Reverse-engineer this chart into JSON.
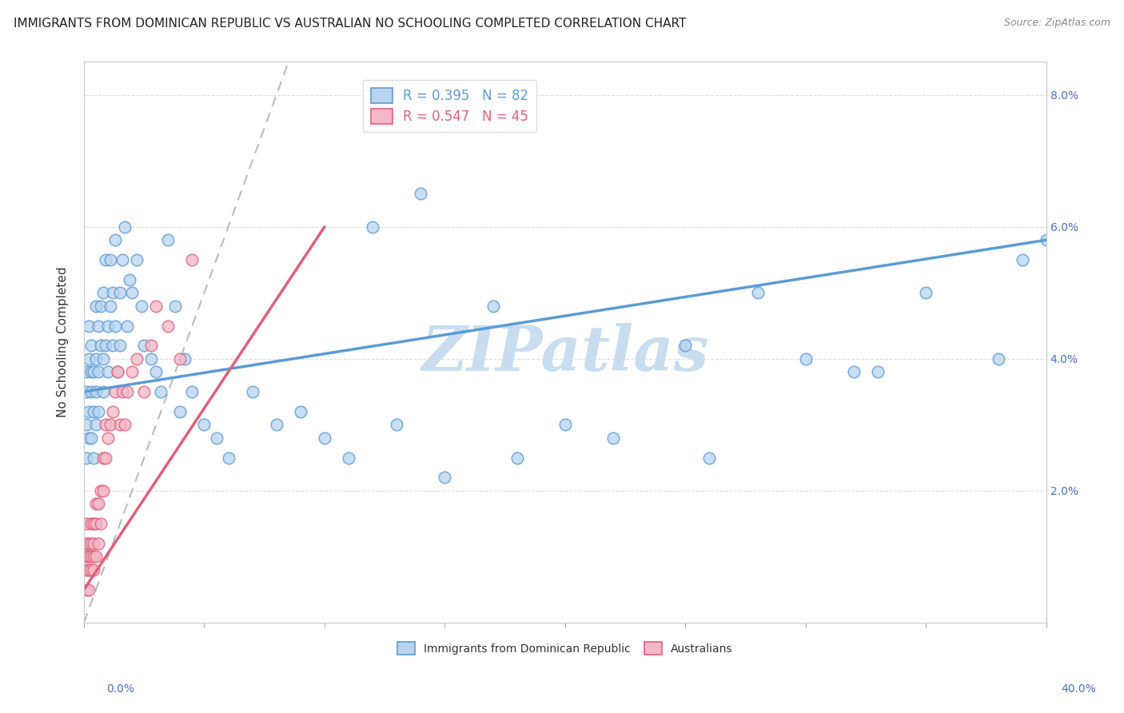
{
  "title": "IMMIGRANTS FROM DOMINICAN REPUBLIC VS AUSTRALIAN NO SCHOOLING COMPLETED CORRELATION CHART",
  "source": "Source: ZipAtlas.com",
  "ylabel_label": "No Schooling Completed",
  "yticks": [
    0.02,
    0.04,
    0.06,
    0.08
  ],
  "xlim": [
    0.0,
    0.4
  ],
  "ylim": [
    0.0,
    0.085
  ],
  "blue_scatter_x": [
    0.001,
    0.001,
    0.001,
    0.001,
    0.002,
    0.002,
    0.002,
    0.002,
    0.003,
    0.003,
    0.003,
    0.003,
    0.004,
    0.004,
    0.004,
    0.005,
    0.005,
    0.005,
    0.005,
    0.006,
    0.006,
    0.006,
    0.007,
    0.007,
    0.008,
    0.008,
    0.008,
    0.009,
    0.009,
    0.01,
    0.01,
    0.011,
    0.011,
    0.012,
    0.012,
    0.013,
    0.013,
    0.014,
    0.015,
    0.015,
    0.016,
    0.017,
    0.018,
    0.019,
    0.02,
    0.022,
    0.024,
    0.025,
    0.028,
    0.03,
    0.032,
    0.035,
    0.038,
    0.04,
    0.042,
    0.045,
    0.05,
    0.055,
    0.06,
    0.07,
    0.08,
    0.09,
    0.1,
    0.11,
    0.13,
    0.15,
    0.18,
    0.2,
    0.22,
    0.26,
    0.3,
    0.32,
    0.35,
    0.38,
    0.39,
    0.4,
    0.17,
    0.25,
    0.28,
    0.33,
    0.12,
    0.14
  ],
  "blue_scatter_y": [
    0.03,
    0.035,
    0.025,
    0.038,
    0.028,
    0.032,
    0.04,
    0.045,
    0.035,
    0.028,
    0.038,
    0.042,
    0.025,
    0.032,
    0.038,
    0.03,
    0.035,
    0.04,
    0.048,
    0.032,
    0.038,
    0.045,
    0.042,
    0.048,
    0.04,
    0.035,
    0.05,
    0.042,
    0.055,
    0.038,
    0.045,
    0.048,
    0.055,
    0.042,
    0.05,
    0.045,
    0.058,
    0.038,
    0.042,
    0.05,
    0.055,
    0.06,
    0.045,
    0.052,
    0.05,
    0.055,
    0.048,
    0.042,
    0.04,
    0.038,
    0.035,
    0.058,
    0.048,
    0.032,
    0.04,
    0.035,
    0.03,
    0.028,
    0.025,
    0.035,
    0.03,
    0.032,
    0.028,
    0.025,
    0.03,
    0.022,
    0.025,
    0.03,
    0.028,
    0.025,
    0.04,
    0.038,
    0.05,
    0.04,
    0.055,
    0.058,
    0.048,
    0.042,
    0.05,
    0.038,
    0.06,
    0.065
  ],
  "pink_scatter_x": [
    0.001,
    0.001,
    0.001,
    0.001,
    0.001,
    0.002,
    0.002,
    0.002,
    0.002,
    0.003,
    0.003,
    0.003,
    0.003,
    0.004,
    0.004,
    0.004,
    0.004,
    0.005,
    0.005,
    0.005,
    0.006,
    0.006,
    0.007,
    0.007,
    0.008,
    0.008,
    0.009,
    0.009,
    0.01,
    0.011,
    0.012,
    0.013,
    0.014,
    0.015,
    0.016,
    0.017,
    0.018,
    0.02,
    0.022,
    0.025,
    0.028,
    0.03,
    0.035,
    0.04,
    0.045
  ],
  "pink_scatter_y": [
    0.005,
    0.01,
    0.015,
    0.008,
    0.012,
    0.008,
    0.012,
    0.005,
    0.01,
    0.01,
    0.015,
    0.008,
    0.012,
    0.01,
    0.015,
    0.008,
    0.012,
    0.01,
    0.015,
    0.018,
    0.012,
    0.018,
    0.015,
    0.02,
    0.02,
    0.025,
    0.025,
    0.03,
    0.028,
    0.03,
    0.032,
    0.035,
    0.038,
    0.03,
    0.035,
    0.03,
    0.035,
    0.038,
    0.04,
    0.035,
    0.042,
    0.048,
    0.045,
    0.04,
    0.055
  ],
  "blue_line_x": [
    0.0,
    0.4
  ],
  "blue_line_y": [
    0.035,
    0.058
  ],
  "pink_line_x": [
    0.0,
    0.1
  ],
  "pink_line_y": [
    0.005,
    0.06
  ],
  "diag_line_x": [
    0.0,
    0.085
  ],
  "diag_line_y": [
    0.0,
    0.085
  ],
  "blue_dot_color": "#5b9bd5",
  "blue_fill_color": "#b8d4ee",
  "pink_dot_color": "#e0607a",
  "pink_fill_color": "#f4b8c8",
  "grid_color": "#dddddd",
  "spine_color": "#cccccc",
  "title_color": "#222222",
  "source_color": "#888888",
  "axis_tick_color": "#4472c4",
  "watermark_color": "#c8ddf0",
  "title_fontsize": 11,
  "source_fontsize": 9,
  "tick_fontsize": 10,
  "ylabel_fontsize": 11,
  "legend_fontsize": 12
}
